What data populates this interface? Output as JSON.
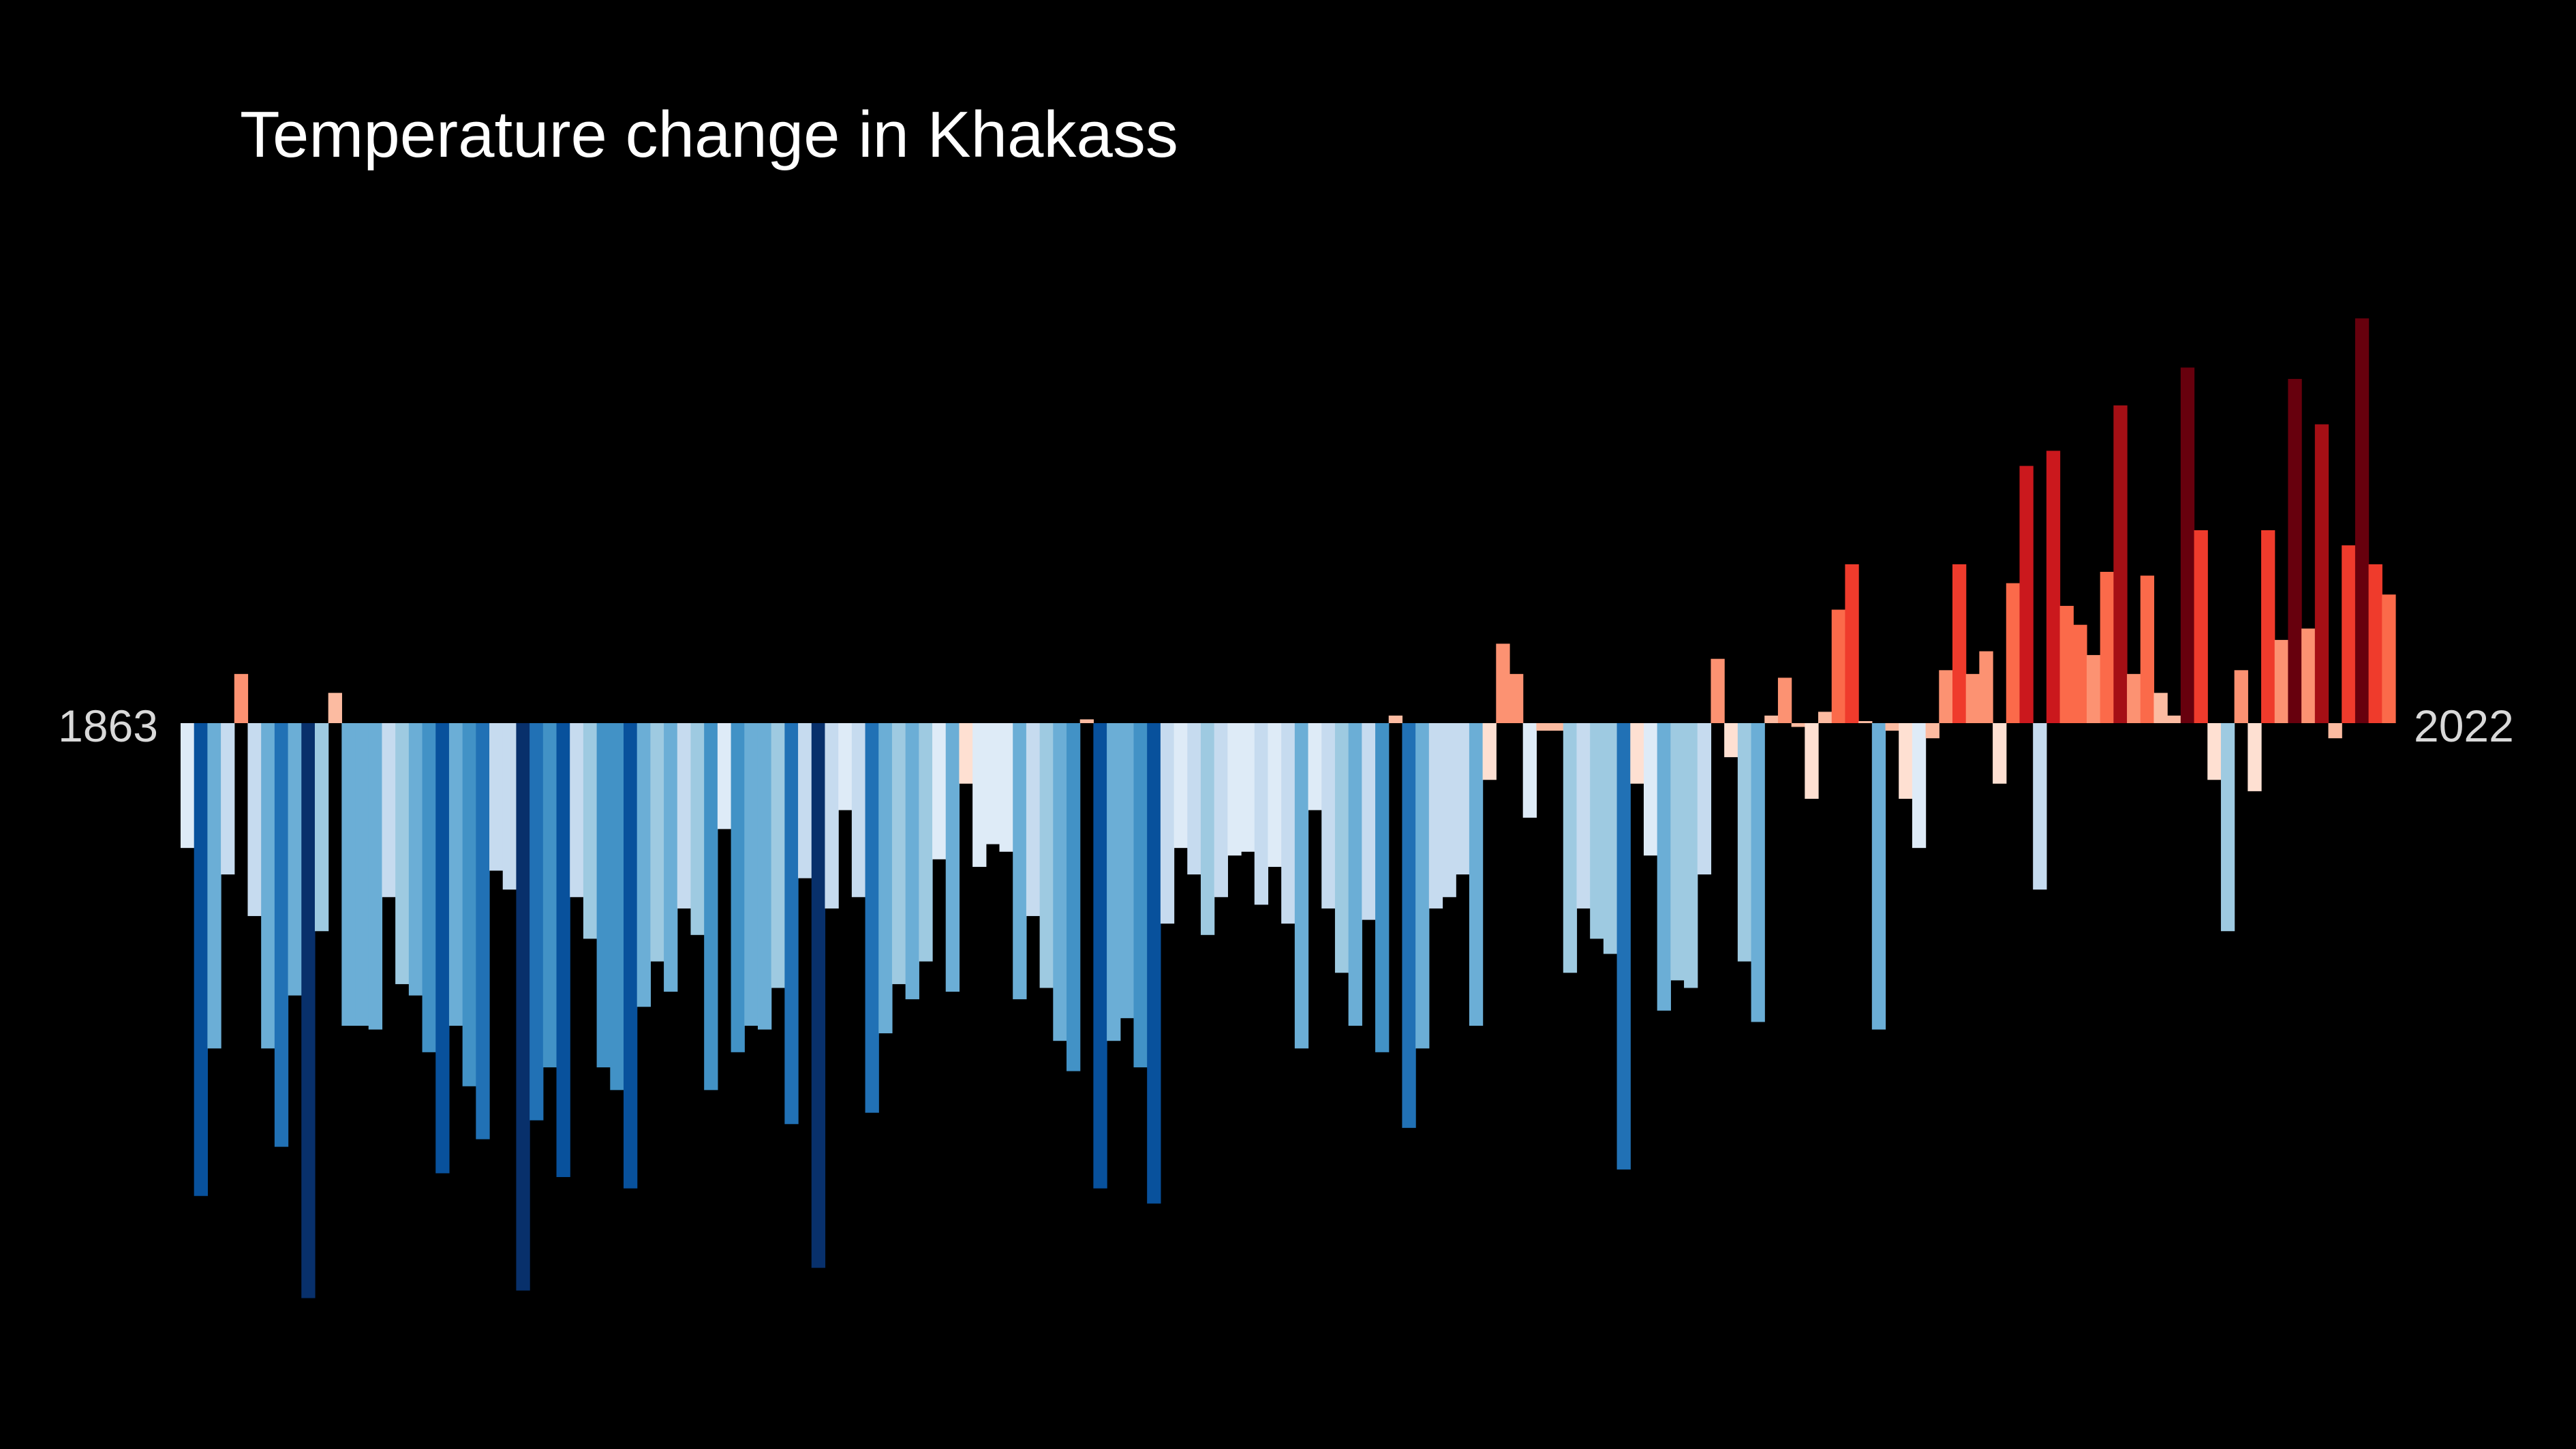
{
  "chart_data": {
    "type": "bar",
    "title": "Temperature change in Khakass",
    "start_label": "1863",
    "end_label": "2022",
    "x_start": 1863,
    "x_end": 2022,
    "y_range": [
      -1.5,
      1.05
    ],
    "grid": false,
    "legend": "none",
    "palette": [
      "#08306b",
      "#08519c",
      "#2171b5",
      "#4292c6",
      "#6baed6",
      "#9ecae1",
      "#c6dbef",
      "#deebf7",
      "#fee0d2",
      "#fcbba1",
      "#fc9272",
      "#fb6a4a",
      "#ef3b2c",
      "#cb181d",
      "#a50f15",
      "#67000d"
    ],
    "values": [
      -0.33,
      -1.25,
      -0.86,
      -0.4,
      0.13,
      -0.51,
      -0.86,
      -1.12,
      -0.72,
      -1.52,
      -0.55,
      0.08,
      -0.8,
      -0.8,
      -0.81,
      -0.46,
      -0.69,
      -0.72,
      -0.87,
      -1.19,
      -0.8,
      -0.96,
      -1.1,
      -0.39,
      -0.44,
      -1.5,
      -1.05,
      -0.91,
      -1.2,
      -0.46,
      -0.57,
      -0.91,
      -0.97,
      -1.23,
      -0.75,
      -0.63,
      -0.71,
      -0.49,
      -0.56,
      -0.97,
      -0.28,
      -0.87,
      -0.8,
      -0.81,
      -0.7,
      -1.06,
      -0.41,
      -1.44,
      -0.49,
      -0.23,
      -0.46,
      -1.03,
      -0.82,
      -0.69,
      -0.73,
      -0.63,
      -0.36,
      -0.71,
      -0.16,
      -0.38,
      -0.32,
      -0.34,
      -0.73,
      -0.51,
      -0.7,
      -0.84,
      -0.92,
      0.01,
      -1.23,
      -0.84,
      -0.78,
      -0.91,
      -1.27,
      -0.53,
      -0.33,
      -0.4,
      -0.56,
      -0.46,
      -0.35,
      -0.34,
      -0.48,
      -0.38,
      -0.53,
      -0.86,
      -0.23,
      -0.49,
      -0.66,
      -0.8,
      -0.52,
      -0.87,
      0.02,
      -1.07,
      -0.86,
      -0.49,
      -0.46,
      -0.4,
      -0.8,
      -0.15,
      0.21,
      0.13,
      -0.25,
      -0.02,
      -0.02,
      -0.66,
      -0.49,
      -0.57,
      -0.61,
      -1.18,
      -0.16,
      -0.35,
      -0.76,
      -0.68,
      -0.7,
      -0.4,
      0.17,
      -0.09,
      -0.63,
      -0.79,
      0.02,
      0.12,
      -0.01,
      -0.2,
      0.03,
      0.3,
      0.42,
      0.0,
      -0.81,
      -0.02,
      -0.2,
      -0.33,
      -0.04,
      0.14,
      0.42,
      0.13,
      0.19,
      -0.16,
      0.37,
      0.68,
      -0.44,
      0.72,
      0.31,
      0.26,
      0.18,
      0.4,
      0.84,
      0.13,
      0.39,
      0.08,
      0.02,
      0.94,
      0.51,
      -0.15,
      -0.55,
      0.14,
      -0.18,
      0.51,
      0.22,
      0.91,
      0.25,
      0.79,
      -0.04,
      0.47,
      1.07,
      0.42,
      0.34
    ]
  }
}
